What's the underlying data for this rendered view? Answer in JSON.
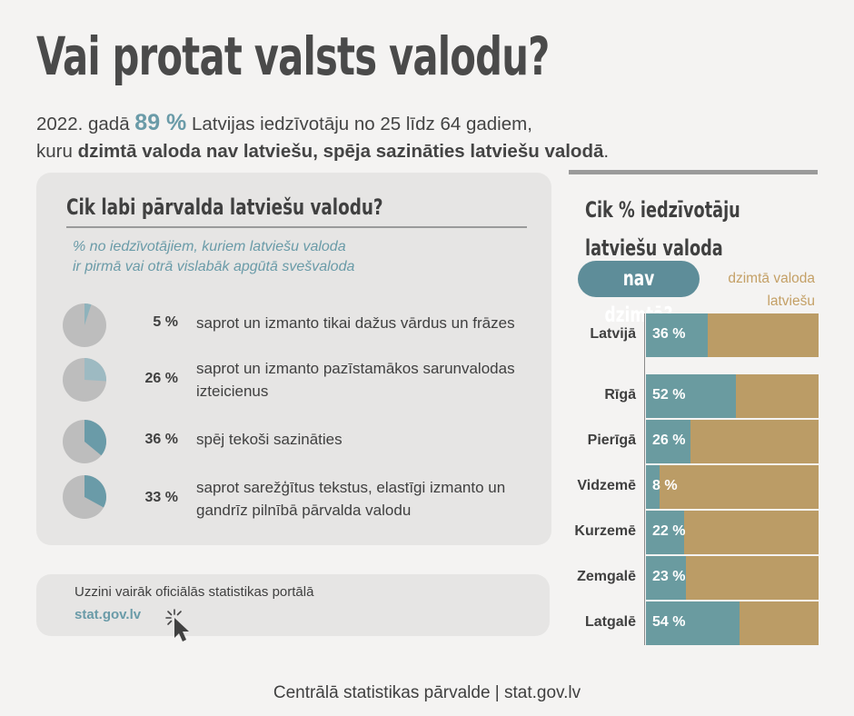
{
  "title": "Vai protat valsts valodu?",
  "subtitle": {
    "part1": "2022. gadā ",
    "highlight": "89 %",
    "part2": " Latvijas iedzīvotāju no 25 līdz 64 gadiem,",
    "part3": "kuru ",
    "bold": "dzimtā valoda nav latviešu, spēja sazināties latviešu valodā",
    "part4": "."
  },
  "proficiency": {
    "heading": "Cik labi pārvalda latviešu valodu?",
    "note_line1": "% no iedzīvotājiem, kuriem latviešu valoda",
    "note_line2": "ir pirmā vai otrā vislabāk apgūtā svešvaloda",
    "items": [
      {
        "value": 5,
        "label": "5 %",
        "description": "saprot un izmanto tikai dažus vārdus un frāzes"
      },
      {
        "value": 26,
        "label": "26 %",
        "description": "saprot un izmanto pazīstamākos sarunvalodas izteicienus"
      },
      {
        "value": 36,
        "label": "36 %",
        "description": "spēj tekoši sazināties"
      },
      {
        "value": 33,
        "label": "33 %",
        "description": "saprot sarežģītus tekstus, elastīgi izmanto un gandrīz pilnībā pārvalda valodu"
      }
    ]
  },
  "link": {
    "text": "Uzzini vairāk oficiālās statistikas portālā",
    "url_label": "stat.gov.lv"
  },
  "regions": {
    "heading_line1": "Cik % iedzīvotāju",
    "heading_line2": "latviešu valoda",
    "pill": "nav dzimtā?",
    "legend_line1": "dzimtā valoda",
    "legend_line2": "latviešu"
  },
  "chart_data": {
    "type": "bar",
    "orientation": "horizontal",
    "stacked": true,
    "categories": [
      "Latvijā",
      "Rīgā",
      "Pierīgā",
      "Vidzemē",
      "Kurzemē",
      "Zemgalē",
      "Latgalē"
    ],
    "series": [
      {
        "name": "nav dzimtā",
        "values": [
          36,
          52,
          26,
          8,
          22,
          23,
          54
        ],
        "color": "#6a9ba0"
      },
      {
        "name": "dzimtā valoda latviešu",
        "values": [
          64,
          48,
          74,
          92,
          78,
          77,
          46
        ],
        "color": "#bb9c66"
      }
    ],
    "value_labels": [
      "36 %",
      "52 %",
      "26 %",
      "8 %",
      "22 %",
      "23 %",
      "54 %"
    ],
    "xlim": [
      0,
      100
    ]
  },
  "colors": {
    "accent": "#6a9ba8",
    "bar_teal": "#6a9ba0",
    "bar_gold": "#bb9c66",
    "legend_gold": "#c4a066",
    "pie_gray": "#bdbdbd"
  },
  "footer": "Centrālā statistikas pārvalde | stat.gov.lv"
}
